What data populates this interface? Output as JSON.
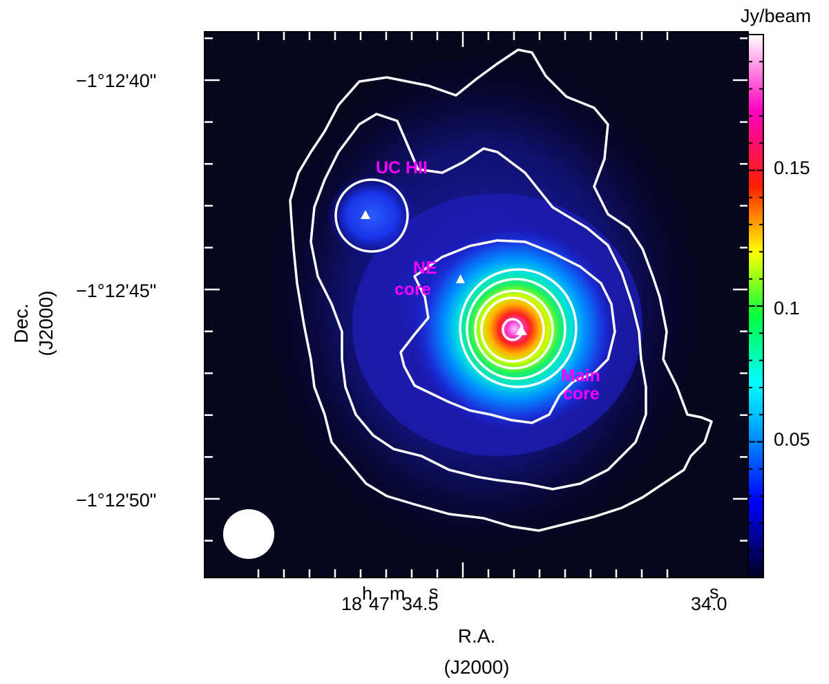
{
  "chart_data": {
    "type": "heatmap",
    "title": "",
    "colorbar": {
      "unit_label": "Jy/beam",
      "ticks": [
        {
          "value": 0.05,
          "label": "0.05"
        },
        {
          "value": 0.1,
          "label": "0.1"
        },
        {
          "value": 0.15,
          "label": "0.15"
        }
      ],
      "range": [
        0.0,
        0.2
      ],
      "colormap": [
        "#000020",
        "#0000ff",
        "#00ffff",
        "#00ff00",
        "#ffff00",
        "#ff0000",
        "#ff00ff",
        "#ffffff"
      ]
    },
    "x_axis": {
      "title": "R.A.",
      "title_sub": "(J2000)",
      "labels": [
        {
          "ra_sec": 34.5,
          "main": "18",
          "h": "h",
          "m": "m",
          "main2": "47",
          "s": "s",
          "tail": "34.5"
        },
        {
          "ra_sec": 34.0,
          "main": "",
          "h": "",
          "m": "",
          "main2": "",
          "s": "s",
          "tail": "34.0"
        }
      ]
    },
    "y_axis": {
      "title": "Dec.",
      "title_sub": "(J2000)",
      "labels": [
        {
          "dec_arcsec": 40,
          "text": "−1°12'40\""
        },
        {
          "dec_arcsec": 45,
          "text": "−1°12'45\""
        },
        {
          "dec_arcsec": 50,
          "text": "−1°12'50\""
        }
      ]
    },
    "sources": [
      {
        "name": "UC HII",
        "peak": 0.045
      },
      {
        "name": "NE core",
        "peak": 0.04
      },
      {
        "name": "Main core",
        "peak": 0.2
      }
    ],
    "annotations": [
      {
        "text": "UC  HII",
        "color": "#ff00ff"
      },
      {
        "text": "NE",
        "color": "#ff00ff"
      },
      {
        "text": "core",
        "color": "#ff00ff"
      },
      {
        "text": "Main",
        "color": "#ff00ff"
      },
      {
        "text": "core",
        "color": "#ff00ff"
      }
    ],
    "markers": [
      "triangle",
      "triangle",
      "triangle"
    ],
    "beam": "white-ellipse",
    "grid": false
  }
}
